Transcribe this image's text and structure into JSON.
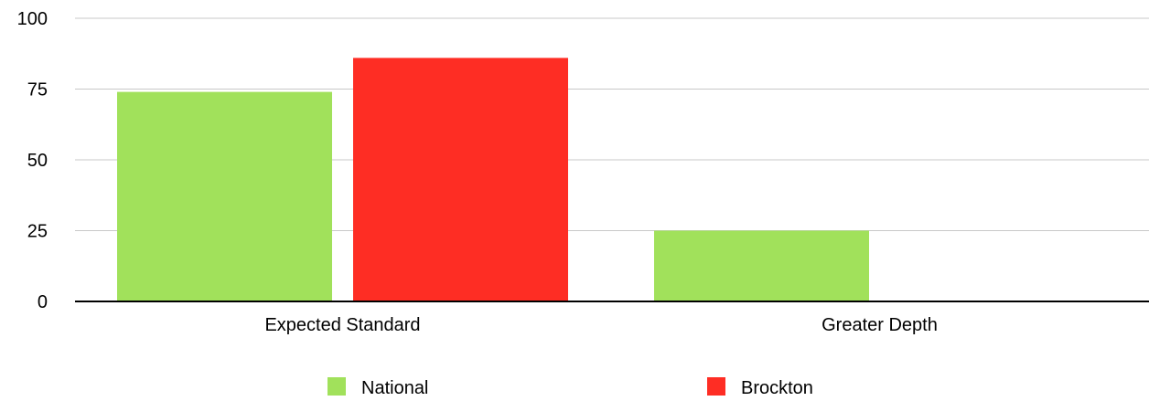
{
  "chart_data": {
    "type": "bar",
    "categories": [
      "Expected Standard",
      "Greater Depth"
    ],
    "series": [
      {
        "name": "National",
        "color": "#a1e15b",
        "values": [
          74,
          25
        ]
      },
      {
        "name": "Brockton",
        "color": "#fe2d24",
        "values": [
          86,
          0
        ]
      }
    ],
    "ylim": [
      0,
      100
    ],
    "yticks": [
      0,
      25,
      50,
      75,
      100
    ],
    "grid": true,
    "legend": "bottom"
  }
}
